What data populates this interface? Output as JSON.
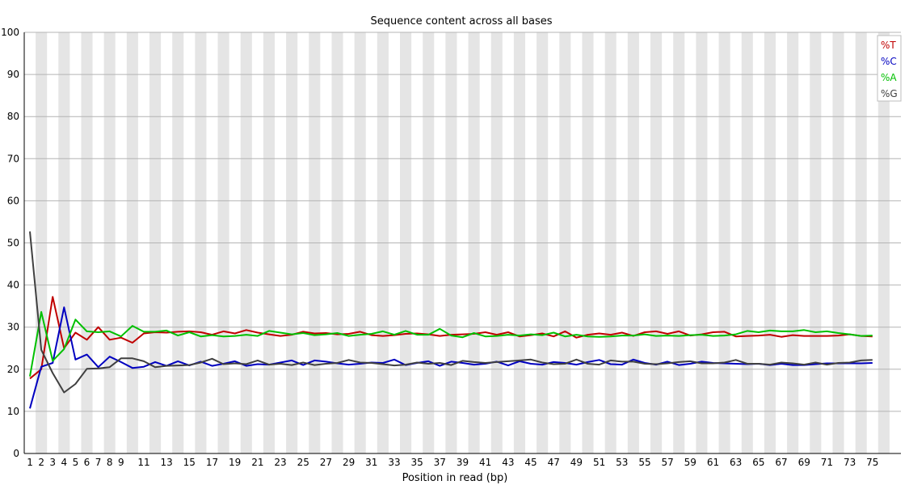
{
  "chart_data": {
    "type": "line",
    "title": "Sequence content across all bases",
    "xlabel": "Position in read (bp)",
    "ylabel": "",
    "ylim": [
      0,
      100
    ],
    "yticks": [
      "0",
      "10",
      "20",
      "30",
      "40",
      "50",
      "60",
      "70",
      "80",
      "90",
      "100"
    ],
    "x": [
      1,
      2,
      3,
      4,
      5,
      6,
      7,
      8,
      9,
      10,
      11,
      12,
      13,
      14,
      15,
      16,
      17,
      18,
      19,
      20,
      21,
      22,
      23,
      24,
      25,
      26,
      27,
      28,
      29,
      30,
      31,
      32,
      33,
      34,
      35,
      36,
      37,
      38,
      39,
      40,
      41,
      42,
      43,
      44,
      45,
      46,
      47,
      48,
      49,
      50,
      51,
      52,
      53,
      54,
      55,
      56,
      57,
      58,
      59,
      60,
      61,
      62,
      63,
      64,
      65,
      66,
      67,
      68,
      69,
      70,
      71,
      72,
      73,
      74,
      75
    ],
    "xtick_labels": [
      "1",
      "2",
      "3",
      "4",
      "5",
      "6",
      "7",
      "8",
      "9",
      "11",
      "13",
      "15",
      "17",
      "19",
      "21",
      "23",
      "25",
      "27",
      "29",
      "31",
      "33",
      "35",
      "37",
      "39",
      "41",
      "43",
      "45",
      "47",
      "49",
      "51",
      "53",
      "55",
      "57",
      "59",
      "61",
      "63",
      "65",
      "67",
      "69",
      "71",
      "73",
      "75"
    ],
    "legend_position": "top-right",
    "series": [
      {
        "name": "%T",
        "color": "#c00000",
        "values": [
          17.8,
          20.0,
          37.2,
          25.0,
          28.7,
          27.0,
          30.0,
          27.0,
          27.5,
          26.3,
          28.5,
          28.8,
          28.7,
          28.9,
          29.0,
          28.8,
          28.2,
          29.0,
          28.5,
          29.3,
          28.7,
          28.3,
          27.9,
          28.2,
          28.9,
          28.5,
          28.6,
          28.3,
          28.4,
          28.9,
          28.1,
          27.9,
          28.1,
          28.4,
          28.5,
          28.3,
          27.9,
          28.2,
          28.3,
          28.4,
          28.8,
          28.2,
          28.8,
          27.8,
          28.1,
          28.5,
          27.8,
          29.0,
          27.5,
          28.2,
          28.5,
          28.2,
          28.7,
          27.9,
          28.8,
          29.0,
          28.4,
          29.0,
          28.0,
          28.3,
          28.8,
          28.9,
          27.8,
          27.9,
          28.0,
          28.2,
          27.7,
          28.1,
          27.9,
          27.9,
          27.9,
          28.0,
          28.3,
          27.9,
          27.8
        ]
      },
      {
        "name": "%C",
        "color": "#0000c0",
        "values": [
          10.7,
          20.6,
          21.5,
          34.7,
          22.3,
          23.5,
          20.5,
          23.0,
          21.7,
          20.3,
          20.6,
          21.7,
          20.8,
          21.9,
          20.9,
          21.8,
          20.8,
          21.3,
          21.9,
          20.8,
          21.2,
          21.1,
          21.6,
          22.1,
          21.0,
          22.1,
          21.8,
          21.4,
          21.1,
          21.3,
          21.6,
          21.5,
          22.3,
          21.0,
          21.5,
          21.9,
          20.8,
          21.8,
          21.5,
          21.1,
          21.3,
          21.8,
          20.9,
          21.9,
          21.3,
          21.1,
          21.7,
          21.5,
          21.1,
          21.7,
          22.2,
          21.2,
          21.1,
          22.3,
          21.5,
          21.1,
          21.8,
          21.0,
          21.3,
          21.8,
          21.5,
          21.4,
          21.3,
          21.2,
          21.3,
          21.0,
          21.3,
          21.0,
          21.0,
          21.2,
          21.4,
          21.4,
          21.4,
          21.4,
          21.5
        ]
      },
      {
        "name": "%A",
        "color": "#00c000",
        "values": [
          18.3,
          33.6,
          22.0,
          24.8,
          31.8,
          29.0,
          28.8,
          29.0,
          27.8,
          30.3,
          28.9,
          28.9,
          29.2,
          28.0,
          28.8,
          27.8,
          28.1,
          27.8,
          27.9,
          28.2,
          27.9,
          29.1,
          28.7,
          28.3,
          28.6,
          28.1,
          28.3,
          28.6,
          27.9,
          28.2,
          28.4,
          29.0,
          28.2,
          29.1,
          28.2,
          28.2,
          29.6,
          28.0,
          27.6,
          28.6,
          27.8,
          27.9,
          28.2,
          28.0,
          28.3,
          28.1,
          28.7,
          27.8,
          28.2,
          27.8,
          27.7,
          27.8,
          28.0,
          28.0,
          28.3,
          27.9,
          28.0,
          27.9,
          28.1,
          28.2,
          27.9,
          28.0,
          28.3,
          29.1,
          28.8,
          29.2,
          29.0,
          29.0,
          29.3,
          28.8,
          29.0,
          28.6,
          28.3,
          27.9,
          28.0
        ]
      },
      {
        "name": "%G",
        "color": "#404040",
        "values": [
          52.7,
          24.6,
          19.1,
          14.5,
          16.5,
          20.1,
          20.2,
          20.5,
          22.6,
          22.6,
          21.9,
          20.5,
          20.8,
          20.9,
          21.0,
          21.6,
          22.5,
          21.2,
          21.4,
          21.2,
          22.1,
          21.1,
          21.3,
          21.0,
          21.6,
          21.0,
          21.3,
          21.5,
          22.2,
          21.6,
          21.5,
          21.2,
          20.9,
          21.1,
          21.6,
          21.3,
          21.5,
          21.0,
          22.0,
          21.7,
          21.5,
          21.7,
          21.9,
          22.1,
          22.3,
          21.6,
          21.2,
          21.3,
          22.3,
          21.3,
          21.1,
          22.1,
          21.8,
          21.8,
          21.3,
          21.2,
          21.4,
          21.7,
          21.9,
          21.4,
          21.4,
          21.6,
          22.2,
          21.3,
          21.3,
          21.1,
          21.6,
          21.4,
          21.1,
          21.6,
          21.1,
          21.5,
          21.6,
          22.1,
          22.2
        ]
      }
    ]
  }
}
